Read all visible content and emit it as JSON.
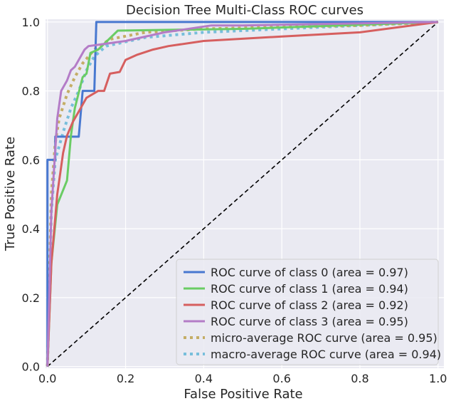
{
  "chart_data": {
    "type": "line",
    "title": "Decision Tree Multi-Class ROC curves",
    "xlabel": "False Positive Rate",
    "ylabel": "True Positive Rate",
    "xlim": [
      0.0,
      1.0
    ],
    "ylim": [
      0.0,
      1.0
    ],
    "xticks": [
      "0.0",
      "0.2",
      "0.4",
      "0.6",
      "0.8",
      "1.0"
    ],
    "yticks": [
      "0.0",
      "0.2",
      "0.4",
      "0.6",
      "0.8",
      "1.0"
    ],
    "grid": true,
    "legend_position": "lower-right",
    "background_color": "#eaeaf2",
    "grid_color": "#ffffff",
    "series": [
      {
        "name": "ROC curve of class 0 (area = 0.97)",
        "color": "#4878d0",
        "style": "solid",
        "x": [
          0.0,
          0.0,
          0.02,
          0.02,
          0.08,
          0.09,
          0.12,
          0.125,
          1.0
        ],
        "y": [
          0.0,
          0.6,
          0.6,
          0.667,
          0.667,
          0.8,
          0.8,
          1.0,
          1.0
        ]
      },
      {
        "name": "ROC curve of class 1 (area = 0.94)",
        "color": "#6acc64",
        "style": "solid",
        "x": [
          0.0,
          0.01,
          0.025,
          0.05,
          0.06,
          0.07,
          0.09,
          0.1,
          0.11,
          0.13,
          0.18,
          0.3,
          0.5,
          1.0
        ],
        "y": [
          0.0,
          0.3,
          0.47,
          0.54,
          0.67,
          0.75,
          0.84,
          0.85,
          0.91,
          0.92,
          0.975,
          0.977,
          0.98,
          1.0
        ]
      },
      {
        "name": "ROC curve of class 2 (area = 0.92)",
        "color": "#d65f5f",
        "style": "solid",
        "x": [
          0.0,
          0.01,
          0.025,
          0.035,
          0.04,
          0.05,
          0.065,
          0.08,
          0.085,
          0.1,
          0.13,
          0.145,
          0.16,
          0.185,
          0.2,
          0.23,
          0.27,
          0.31,
          0.4,
          0.6,
          0.8,
          1.0
        ],
        "y": [
          0.0,
          0.3,
          0.5,
          0.58,
          0.62,
          0.67,
          0.71,
          0.74,
          0.75,
          0.78,
          0.8,
          0.8,
          0.85,
          0.855,
          0.89,
          0.905,
          0.92,
          0.93,
          0.945,
          0.958,
          0.97,
          1.0
        ]
      },
      {
        "name": "ROC curve of class 3 (area = 0.95)",
        "color": "#b47cc7",
        "style": "solid",
        "x": [
          0.0,
          0.01,
          0.025,
          0.035,
          0.05,
          0.06,
          0.07,
          0.08,
          0.095,
          0.105,
          0.2,
          0.3,
          0.42,
          0.5,
          1.0
        ],
        "y": [
          0.0,
          0.45,
          0.72,
          0.8,
          0.83,
          0.86,
          0.87,
          0.89,
          0.92,
          0.93,
          0.945,
          0.97,
          0.99,
          0.99,
          1.0
        ]
      },
      {
        "name": "micro-average ROC curve (area = 0.95)",
        "color": "#c4ad66",
        "style": "dotted",
        "x": [
          0.0,
          0.01,
          0.02,
          0.03,
          0.05,
          0.07,
          0.09,
          0.12,
          0.16,
          0.25,
          0.4,
          0.6,
          0.8,
          1.0
        ],
        "y": [
          0.0,
          0.5,
          0.65,
          0.72,
          0.79,
          0.84,
          0.88,
          0.92,
          0.95,
          0.97,
          0.98,
          0.985,
          0.99,
          1.0
        ]
      },
      {
        "name": "macro-average ROC curve (area = 0.94)",
        "color": "#77bedb",
        "style": "dotted",
        "x": [
          0.0,
          0.01,
          0.02,
          0.04,
          0.06,
          0.08,
          0.1,
          0.12,
          0.15,
          0.25,
          0.4,
          0.6,
          0.8,
          1.0
        ],
        "y": [
          0.0,
          0.45,
          0.6,
          0.68,
          0.75,
          0.8,
          0.86,
          0.9,
          0.93,
          0.955,
          0.97,
          0.98,
          0.99,
          1.0
        ]
      },
      {
        "name": "",
        "color": "#000000",
        "style": "dashed",
        "x": [
          0.0,
          1.0
        ],
        "y": [
          0.0,
          1.0
        ]
      }
    ]
  }
}
